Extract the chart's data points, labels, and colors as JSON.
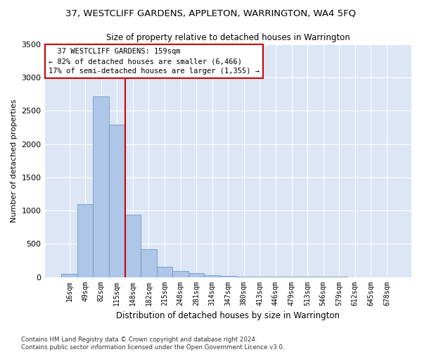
{
  "title": "37, WESTCLIFF GARDENS, APPLETON, WARRINGTON, WA4 5FQ",
  "subtitle": "Size of property relative to detached houses in Warrington",
  "xlabel": "Distribution of detached houses by size in Warrington",
  "ylabel": "Number of detached properties",
  "categories": [
    "16sqm",
    "49sqm",
    "82sqm",
    "115sqm",
    "148sqm",
    "182sqm",
    "215sqm",
    "248sqm",
    "281sqm",
    "314sqm",
    "347sqm",
    "380sqm",
    "413sqm",
    "446sqm",
    "479sqm",
    "513sqm",
    "546sqm",
    "579sqm",
    "612sqm",
    "645sqm",
    "678sqm"
  ],
  "values": [
    50,
    1100,
    2720,
    2290,
    940,
    420,
    155,
    90,
    55,
    30,
    15,
    8,
    5,
    3,
    2,
    2,
    1,
    1,
    0,
    0,
    0
  ],
  "bar_color": "#aec6e8",
  "bar_edge_color": "#5b8db8",
  "vline_color": "#cc0000",
  "vline_pos": 3.5,
  "annotation_text": "  37 WESTCLIFF GARDENS: 159sqm\n← 82% of detached houses are smaller (6,466)\n17% of semi-detached houses are larger (1,355) →",
  "annotation_box_color": "#cc0000",
  "ylim": [
    0,
    3500
  ],
  "yticks": [
    0,
    500,
    1000,
    1500,
    2000,
    2500,
    3000,
    3500
  ],
  "bg_color": "#dce6f5",
  "grid_color": "#ffffff",
  "fig_bg_color": "#ffffff",
  "footnote": "Contains HM Land Registry data © Crown copyright and database right 2024.\nContains public sector information licensed under the Open Government Licence v3.0."
}
